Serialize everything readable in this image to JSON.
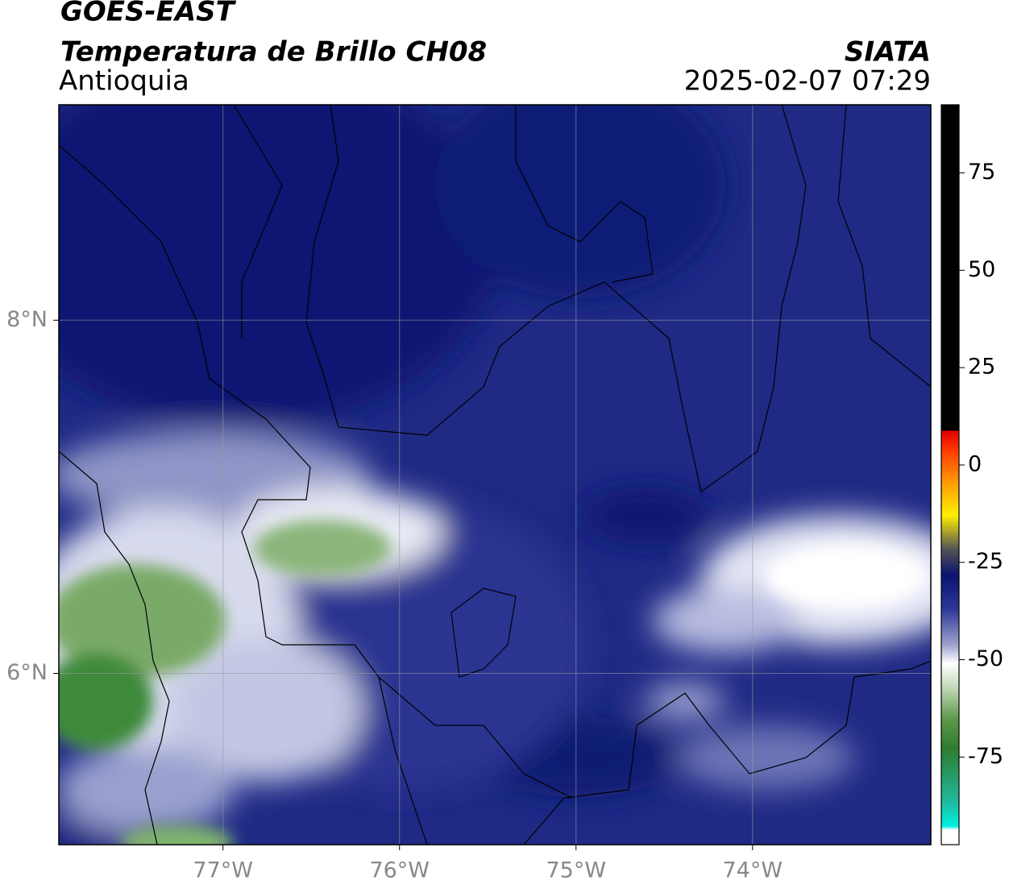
{
  "header": {
    "title": "GOES-EAST",
    "subtitle": "Temperatura de Brillo CH08",
    "region": "Antioquia",
    "source": "SIATA",
    "timestamp": "2025-02-07 07:29"
  },
  "map": {
    "xlim": [
      -77.93,
      -72.99
    ],
    "ylim": [
      5.03,
      9.22
    ],
    "xticks": [
      {
        "value": -77,
        "label": "77°W"
      },
      {
        "value": -76,
        "label": "76°W"
      },
      {
        "value": -75,
        "label": "75°W"
      },
      {
        "value": -74,
        "label": "74°W"
      }
    ],
    "yticks": [
      {
        "value": 6,
        "label": "6°N"
      },
      {
        "value": 8,
        "label": "8°N"
      }
    ],
    "grid": true
  },
  "colorbar": {
    "lim": [
      -97.5,
      92.5
    ],
    "ticks": [
      75,
      50,
      25,
      0,
      -25,
      -50,
      -75
    ]
  }
}
